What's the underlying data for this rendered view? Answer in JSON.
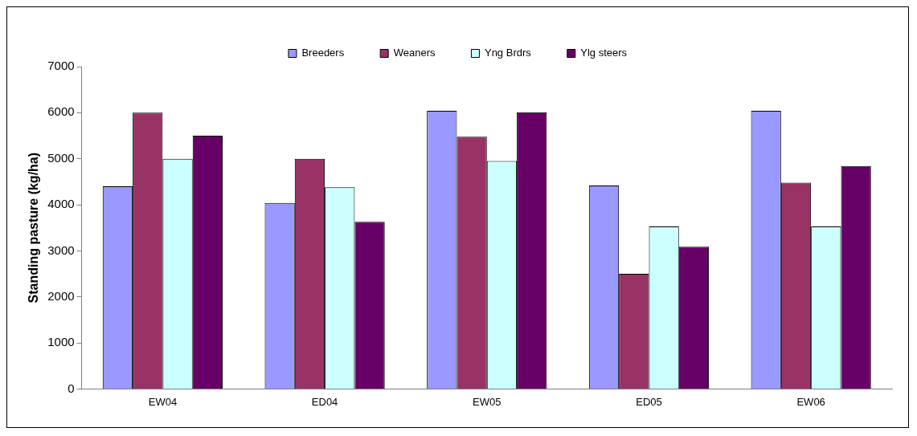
{
  "chart_data": {
    "type": "bar",
    "ylabel": "Standing pasture (kg/ha)",
    "categories": [
      "EW04",
      "ED04",
      "EW05",
      "ED05",
      "EW06"
    ],
    "series": [
      {
        "name": "Breeders",
        "color": "#9999ff",
        "values": [
          4400,
          4040,
          6040,
          4420,
          6040
        ]
      },
      {
        "name": "Weaners",
        "color": "#993366",
        "values": [
          6000,
          5000,
          5480,
          2500,
          4480
        ]
      },
      {
        "name": "Yng Brdrs",
        "color": "#ccffff",
        "values": [
          5000,
          4380,
          4950,
          3530,
          3530
        ]
      },
      {
        "name": "Ylg steers",
        "color": "#660066",
        "values": [
          5500,
          3630,
          6010,
          3090,
          4840
        ]
      }
    ],
    "ylim": [
      0,
      7000
    ],
    "yticks": [
      0,
      1000,
      2000,
      3000,
      4000,
      5000,
      6000,
      7000
    ],
    "grid": false,
    "legend": "top"
  }
}
